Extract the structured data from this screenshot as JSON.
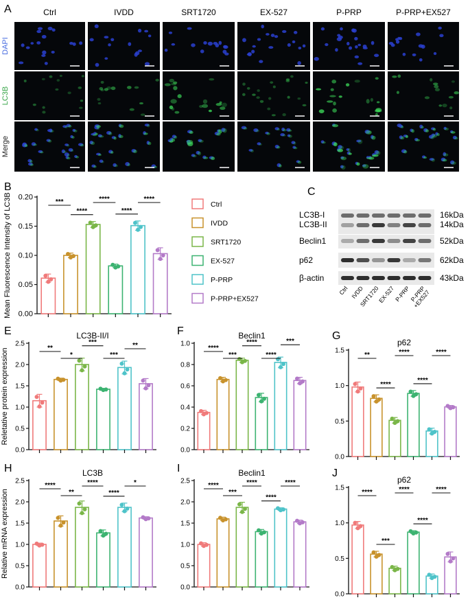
{
  "groups": [
    "Ctrl",
    "IVDD",
    "SRT1720",
    "EX-527",
    "P-PRP",
    "P-PRP+EX527"
  ],
  "colors": {
    "ctrl": "#f07a7a",
    "ivdd": "#c8922c",
    "srt1720": "#7ab648",
    "ex527": "#3cb371",
    "pprp": "#4ec3c9",
    "pprp_ex527": "#b37ac8"
  },
  "panel_letters": {
    "A": "A",
    "B": "B",
    "C": "C",
    "E": "E",
    "F": "F",
    "G": "G",
    "H": "H",
    "I": "I",
    "J": "J"
  },
  "panel_a": {
    "rows": [
      "DAPI",
      "LC3B",
      "Merge"
    ],
    "row_colors": [
      "#4a6ee0",
      "#3aa64a",
      "#222222"
    ]
  },
  "panel_c": {
    "bands_left": [
      "LC3B-I",
      "LC3B-II",
      "Beclin1",
      "p62",
      "β-actin"
    ],
    "sizes": [
      "16kDa",
      "14kDa",
      "52kDa",
      "62kDa",
      "43kDa"
    ],
    "lane_labels": [
      "Ctrl",
      "IVDD",
      "SRT1720",
      "EX-527",
      "P-PRP",
      "P-PRP\n+EX527"
    ]
  },
  "legend": {
    "items": [
      "Ctrl",
      "IVDD",
      "SRT1720",
      "EX-527",
      "P-PRP",
      "P-PRP+EX527"
    ]
  },
  "chart_data": [
    {
      "panel": "B",
      "type": "bar",
      "ylabel": "Mean Fluorescence Intensity of LC3B",
      "ylim": [
        0,
        0.2
      ],
      "yticks": [
        "0.00",
        "0.05",
        "0.10",
        "0.15",
        "0.20"
      ],
      "values": [
        0.061,
        0.1,
        0.153,
        0.082,
        0.151,
        0.103
      ],
      "errors": [
        0.007,
        0.004,
        0.005,
        0.003,
        0.008,
        0.01
      ],
      "significance": [
        {
          "a": 0,
          "b": 1,
          "label": "***"
        },
        {
          "a": 1,
          "b": 2,
          "label": "****"
        },
        {
          "a": 2,
          "b": 3,
          "label": "****"
        },
        {
          "a": 3,
          "b": 4,
          "label": "****"
        },
        {
          "a": 4,
          "b": 5,
          "label": "****"
        }
      ]
    },
    {
      "panel": "E",
      "type": "bar",
      "title": "LC3B-II/I",
      "ylabel": "Reletative protein expression",
      "ylim": [
        0,
        2.5
      ],
      "yticks": [
        "0.0",
        "0.5",
        "1.0",
        "1.5",
        "2.0",
        "2.5"
      ],
      "values": [
        1.15,
        1.65,
        2.0,
        1.42,
        1.93,
        1.55
      ],
      "errors": [
        0.15,
        0.03,
        0.15,
        0.02,
        0.15,
        0.12
      ],
      "significance": [
        {
          "a": 0,
          "b": 1,
          "label": "**"
        },
        {
          "a": 1,
          "b": 2,
          "label": "*"
        },
        {
          "a": 2,
          "b": 3,
          "label": "***"
        },
        {
          "a": 3,
          "b": 4,
          "label": "***"
        },
        {
          "a": 4,
          "b": 5,
          "label": "**"
        }
      ]
    },
    {
      "panel": "F",
      "type": "bar",
      "title": "Beclin1",
      "ylabel": "",
      "ylim": [
        0,
        1.0
      ],
      "yticks": [
        "0.0",
        "0.2",
        "0.4",
        "0.6",
        "0.8",
        "1.0"
      ],
      "values": [
        0.35,
        0.66,
        0.84,
        0.49,
        0.82,
        0.65
      ],
      "errors": [
        0.02,
        0.02,
        0.02,
        0.04,
        0.05,
        0.03
      ],
      "significance": [
        {
          "a": 0,
          "b": 1,
          "label": "****"
        },
        {
          "a": 1,
          "b": 2,
          "label": "***"
        },
        {
          "a": 2,
          "b": 3,
          "label": "****"
        },
        {
          "a": 3,
          "b": 4,
          "label": "****"
        },
        {
          "a": 4,
          "b": 5,
          "label": "***"
        }
      ]
    },
    {
      "panel": "G",
      "type": "bar",
      "title": "p62",
      "ylabel": "",
      "ylim": [
        0,
        1.5
      ],
      "yticks": [
        "0.0",
        "0.5",
        "1.0",
        "1.5"
      ],
      "values": [
        0.98,
        0.82,
        0.51,
        0.89,
        0.36,
        0.7
      ],
      "errors": [
        0.07,
        0.05,
        0.04,
        0.04,
        0.04,
        0.02
      ],
      "significance": [
        {
          "a": 0,
          "b": 1,
          "label": "**"
        },
        {
          "a": 1,
          "b": 2,
          "label": "****"
        },
        {
          "a": 2,
          "b": 3,
          "label": "****"
        },
        {
          "a": 3,
          "b": 4,
          "label": "****"
        },
        {
          "a": 4,
          "b": 5,
          "label": "****"
        }
      ]
    },
    {
      "panel": "H",
      "type": "bar",
      "title": "LC3B",
      "ylabel": "Relative mRNA expression",
      "ylim": [
        0,
        2.5
      ],
      "yticks": [
        "0.0",
        "0.5",
        "1.0",
        "1.5",
        "2.0",
        "2.5"
      ],
      "values": [
        1.0,
        1.55,
        1.87,
        1.27,
        1.87,
        1.62
      ],
      "errors": [
        0.03,
        0.12,
        0.15,
        0.07,
        0.1,
        0.03
      ],
      "significance": [
        {
          "a": 0,
          "b": 1,
          "label": "****"
        },
        {
          "a": 1,
          "b": 2,
          "label": "**"
        },
        {
          "a": 2,
          "b": 3,
          "label": "****"
        },
        {
          "a": 3,
          "b": 4,
          "label": "****"
        },
        {
          "a": 4,
          "b": 5,
          "label": "*"
        }
      ]
    },
    {
      "panel": "I",
      "type": "bar",
      "title": "Beclin1",
      "ylabel": "",
      "ylim": [
        0,
        2.5
      ],
      "yticks": [
        "0.0",
        "0.5",
        "1.0",
        "1.5",
        "2.0",
        "2.5"
      ],
      "values": [
        1.0,
        1.6,
        1.87,
        1.3,
        1.83,
        1.53
      ],
      "errors": [
        0.04,
        0.04,
        0.12,
        0.05,
        0.03,
        0.04
      ],
      "significance": [
        {
          "a": 0,
          "b": 1,
          "label": "****"
        },
        {
          "a": 1,
          "b": 2,
          "label": "***"
        },
        {
          "a": 2,
          "b": 3,
          "label": "****"
        },
        {
          "a": 3,
          "b": 4,
          "label": "****"
        },
        {
          "a": 4,
          "b": 5,
          "label": "****"
        }
      ]
    },
    {
      "panel": "J",
      "type": "bar",
      "title": "p62",
      "ylabel": "",
      "ylim": [
        0,
        1.5
      ],
      "yticks": [
        "0.0",
        "0.5",
        "1.0",
        "1.5"
      ],
      "values": [
        0.97,
        0.56,
        0.36,
        0.87,
        0.25,
        0.52
      ],
      "errors": [
        0.05,
        0.04,
        0.03,
        0.02,
        0.03,
        0.07
      ],
      "significance": [
        {
          "a": 0,
          "b": 1,
          "label": "****"
        },
        {
          "a": 1,
          "b": 2,
          "label": "***"
        },
        {
          "a": 2,
          "b": 3,
          "label": "****"
        },
        {
          "a": 3,
          "b": 4,
          "label": "****"
        },
        {
          "a": 4,
          "b": 5,
          "label": "****"
        }
      ]
    }
  ]
}
